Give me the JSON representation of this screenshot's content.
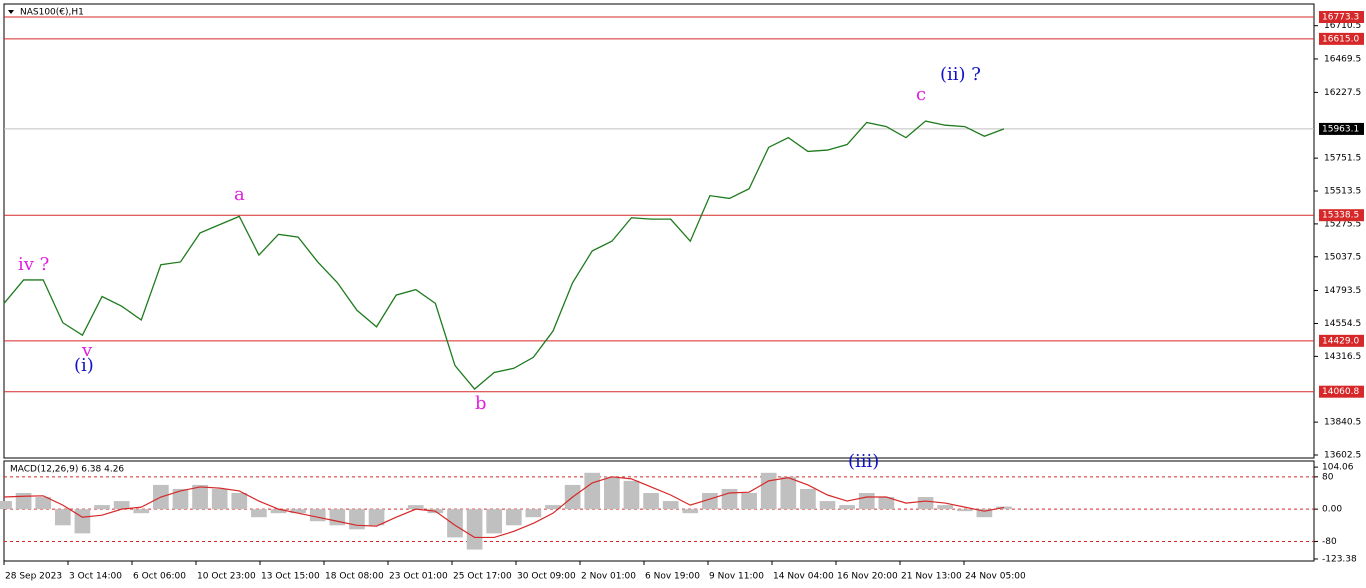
{
  "chart_data": {
    "type": "line",
    "title": "NAS100(€),H1",
    "xticks": [
      "28 Sep 2023",
      "3 Oct 14:00",
      "6 Oct 06:00",
      "10 Oct 23:00",
      "13 Oct 15:00",
      "18 Oct 08:00",
      "23 Oct 01:00",
      "25 Oct 17:00",
      "30 Oct 09:00",
      "2 Nov 01:00",
      "6 Nov 19:00",
      "9 Nov 11:00",
      "14 Nov 04:00",
      "16 Nov 20:00",
      "21 Nov 13:00",
      "24 Nov 05:00"
    ],
    "ylim": [
      13580.8,
      16867.4
    ],
    "yticks": [
      16710.5,
      16469.5,
      16227.5,
      15751.5,
      15513.5,
      15275.5,
      15037.5,
      14793.5,
      14554.5,
      14316.5,
      13840.5,
      13602.5
    ],
    "levels": [
      {
        "value": 16773.3,
        "label": "16773.3"
      },
      {
        "value": 16615,
        "label": "16615.0"
      },
      {
        "value": 15338.5,
        "label": "15338.5"
      },
      {
        "value": 14429,
        "label": "14429.0"
      },
      {
        "value": 14060.8,
        "label": "14060.8"
      }
    ],
    "level_color": "#d62828",
    "current": {
      "value": 15963.1,
      "label": "15963.1"
    },
    "series": [
      {
        "name": "NAS100",
        "color": "#1e7b1e",
        "values": [
          14700,
          14870,
          14870,
          14560,
          14470,
          14750,
          14680,
          14580,
          14980,
          15000,
          15210,
          15270,
          15330,
          15050,
          15200,
          15180,
          15000,
          14850,
          14650,
          14530,
          14760,
          14800,
          14700,
          14250,
          14080,
          14200,
          14230,
          14310,
          14500,
          14850,
          15080,
          15150,
          15320,
          15310,
          15310,
          15150,
          15480,
          15460,
          15530,
          15830,
          15900,
          15800,
          15810,
          15850,
          16010,
          15980,
          15900,
          16020,
          15990,
          15980,
          15910,
          15963.1
        ]
      }
    ],
    "annotations": [
      {
        "text": "iv ?",
        "color": "#e020e0"
      },
      {
        "text": "v",
        "color": "#e020e0"
      },
      {
        "text": "(i)",
        "color": "#1010c8"
      },
      {
        "text": "a",
        "color": "#e020e0"
      },
      {
        "text": "b",
        "color": "#e020e0"
      },
      {
        "text": "c",
        "color": "#e020e0"
      },
      {
        "text": "(ii) ?",
        "color": "#1010c8"
      },
      {
        "text": "(iii)",
        "color": "#1010c8"
      }
    ],
    "indicator": {
      "title": "MACD(12,26,9) 6.38 4.26",
      "ylim": [
        -128.4,
        119.2
      ],
      "yticks": [
        {
          "value": 104.06,
          "label": "104.06"
        },
        80,
        {
          "value": 0,
          "label": "0.00"
        },
        -80,
        -123.38
      ],
      "levels": [
        80,
        0,
        -80
      ],
      "macd": {
        "color": "#c0c0c0",
        "values": [
          20,
          40,
          30,
          -40,
          -60,
          10,
          20,
          -10,
          60,
          50,
          60,
          50,
          40,
          -20,
          -10,
          -10,
          -30,
          -40,
          -50,
          -40,
          0,
          10,
          -10,
          -70,
          -100,
          -60,
          -40,
          -20,
          10,
          60,
          90,
          80,
          70,
          40,
          20,
          -10,
          40,
          50,
          40,
          90,
          80,
          50,
          20,
          10,
          40,
          30,
          0,
          30,
          10,
          -5,
          -20,
          6.38
        ]
      },
      "signal": {
        "color": "#d62828",
        "values": [
          30,
          32,
          33,
          10,
          -20,
          -15,
          0,
          5,
          30,
          45,
          55,
          52,
          45,
          20,
          0,
          -10,
          -20,
          -30,
          -40,
          -42,
          -20,
          0,
          -5,
          -40,
          -70,
          -70,
          -55,
          -35,
          -10,
          30,
          65,
          80,
          75,
          55,
          35,
          10,
          25,
          40,
          42,
          70,
          78,
          60,
          35,
          20,
          30,
          30,
          15,
          20,
          15,
          5,
          -5,
          4.26
        ]
      }
    }
  }
}
